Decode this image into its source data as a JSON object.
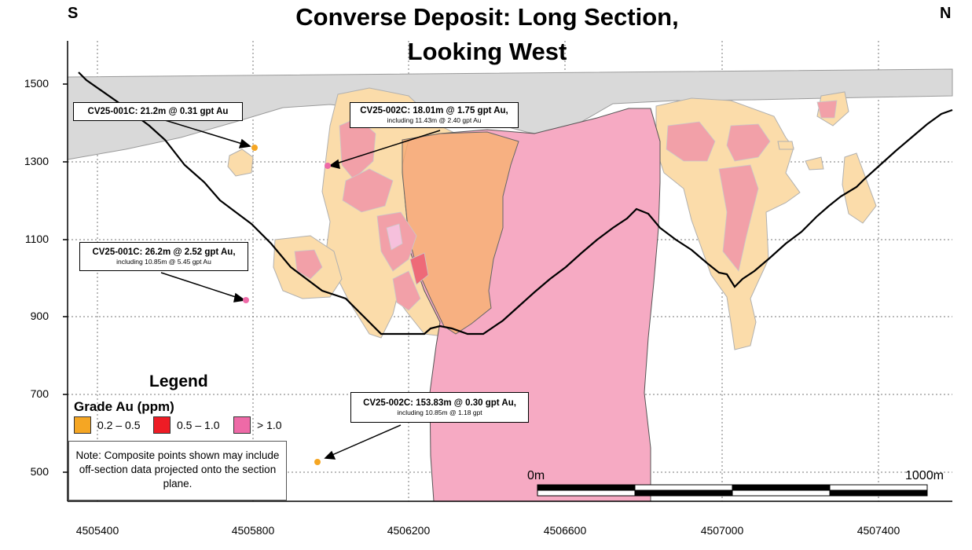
{
  "title": "Converse Deposit: Long Section, Looking West",
  "orientation": {
    "left": "S",
    "right": "N"
  },
  "y_ticks": [
    "1500",
    "1300",
    "1100",
    "900",
    "700",
    "500"
  ],
  "x_ticks": [
    "4505400",
    "4505800",
    "4506200",
    "4506600",
    "4507000",
    "4507400"
  ],
  "callouts": [
    {
      "main": "CV25-001C: 21.2m @ 0.31 gpt Au",
      "sub": ""
    },
    {
      "main": "CV25-002C: 18.01m @ 1.75 gpt Au,",
      "sub": "including 11.43m @ 2.40 gpt Au"
    },
    {
      "main": "CV25-001C: 26.2m @ 2.52 gpt Au,",
      "sub": "including 10.85m @ 5.45 gpt Au"
    },
    {
      "main": "CV25-002C: 153.83m @ 0.30 gpt Au,",
      "sub": "including 10.85m @ 1.18 gpt"
    }
  ],
  "legend": {
    "title": "Legend",
    "subtitle": "Grade Au (ppm)",
    "items": [
      {
        "label": "0.2 – 0.5",
        "color": "#f5a623"
      },
      {
        "label": "0.5 – 1.0",
        "color": "#ee1c25"
      },
      {
        "label": "> 1.0",
        "color": "#ee6aa7"
      }
    ]
  },
  "note": "Note: Composite points shown may include off-section data projected onto the section plane.",
  "scale_bar": {
    "start": "0m",
    "end": "1000m"
  },
  "colors": {
    "envelope_low": "#fbdcaa",
    "envelope_mid": "#f2a0a8",
    "envelope_high": "#f6aac3",
    "orange_zone": "#f7b07a",
    "overburden": "#d9d9d9",
    "point_low": "#f5a623",
    "point_high": "#ee6aa7"
  }
}
